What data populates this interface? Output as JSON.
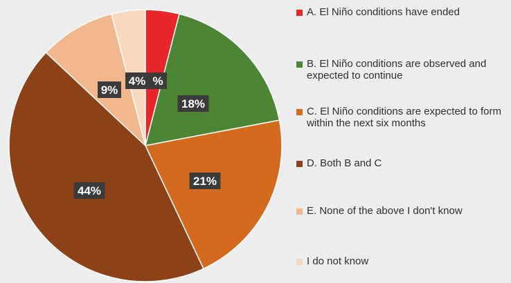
{
  "chart_data": {
    "type": "pie",
    "slices": [
      {
        "legend": "A. El Niño conditions have ended",
        "value": 4,
        "data_label": "%",
        "color": "#e8262a"
      },
      {
        "legend": "B. El Niño conditions are observed and expected to continue",
        "value": 18,
        "data_label": "18%",
        "color": "#4c8533"
      },
      {
        "legend": "C. El Niño conditions are expected to form within the next six months",
        "value": 21,
        "data_label": "21%",
        "color": "#d46a1d"
      },
      {
        "legend": "D. Both B and C",
        "value": 44,
        "data_label": "44%",
        "color": "#8d4116"
      },
      {
        "legend": "E. None of the above I don't know",
        "value": 9,
        "data_label": "9%",
        "color": "#f2b78c"
      },
      {
        "legend": "I do  not know",
        "value": 4,
        "data_label": "4%",
        "color": "#f9d8c0"
      }
    ],
    "legend_position": "right",
    "data_label_style": "dark boxes with white text"
  },
  "colors": {
    "background": "#ededed",
    "label_box": "#3b3b3b",
    "label_text": "#ffffff"
  }
}
